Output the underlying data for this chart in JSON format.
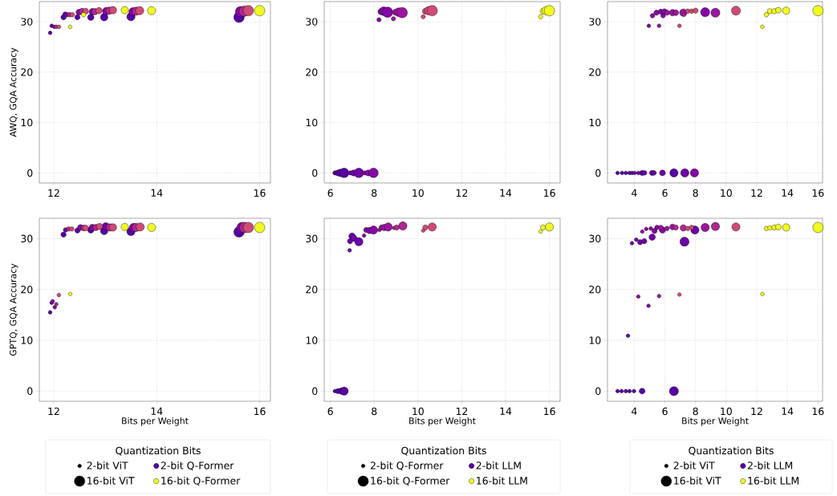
{
  "chart_data": [
    {
      "type": "bubble",
      "ylabel": "AWQ, GQA Accuracy",
      "xlim": [
        11.72,
        16.21
      ],
      "ylim": [
        -2,
        34
      ],
      "xticks": [
        12,
        14,
        16
      ],
      "yticks": [
        0,
        10,
        20,
        30
      ],
      "grid": true,
      "series": [
        {
          "color": "#5602a3",
          "x": [
            11.93,
            12.19,
            12.46,
            12.72,
            12.98,
            13.5,
            15.6
          ],
          "values": [
            27.8,
            30.9,
            30.9,
            30.9,
            30.9,
            31.0,
            30.9
          ],
          "sizes": [
            0.125,
            0.25,
            0.25,
            0.38,
            0.5,
            0.62,
            1
          ]
        },
        {
          "color": "#6e01a8",
          "x": [
            11.96,
            12.22
          ],
          "values": [
            29.2,
            31.5
          ],
          "sizes": [
            0.125,
            0.19
          ]
        },
        {
          "color": "#8409a5",
          "x": [
            12.01,
            12.26,
            12.49,
            12.75,
            13.02,
            13.54,
            15.63
          ],
          "values": [
            29.0,
            31.4,
            31.9,
            32.0,
            32.1,
            32.0,
            32.0
          ],
          "sizes": [
            0.125,
            0.19,
            0.31,
            0.38,
            0.5,
            0.62,
            1
          ]
        },
        {
          "color": "#af2891",
          "x": [
            12.05,
            12.31,
            12.55,
            12.8,
            13.08,
            13.6,
            15.7
          ],
          "values": [
            29.0,
            31.4,
            32.1,
            32.0,
            32.2,
            32.1,
            32.1
          ],
          "sizes": [
            0.125,
            0.19,
            0.31,
            0.38,
            0.5,
            0.62,
            1
          ]
        },
        {
          "color": "#cf4b75",
          "x": [
            12.1,
            12.36,
            12.62,
            12.88,
            13.15,
            13.67,
            15.78
          ],
          "values": [
            29.0,
            31.4,
            32.1,
            32.2,
            32.3,
            32.2,
            32.2
          ],
          "sizes": [
            0.125,
            0.19,
            0.31,
            0.38,
            0.5,
            0.62,
            1
          ]
        },
        {
          "color": "#f0f921",
          "x": [
            12.32,
            12.58,
            13.38,
            13.9,
            16.0
          ],
          "values": [
            29.0,
            31.4,
            32.3,
            32.2,
            32.2
          ],
          "sizes": [
            0.125,
            0.19,
            0.5,
            0.62,
            1
          ]
        }
      ]
    },
    {
      "type": "bubble",
      "xlim": [
        5.72,
        16.49
      ],
      "ylim": [
        -2,
        34
      ],
      "xticks": [
        6,
        8,
        10,
        12,
        14,
        16
      ],
      "yticks": [
        0,
        10,
        20,
        30
      ],
      "grid": true,
      "series": [
        {
          "color": "#5602a3",
          "x": [
            6.21,
            6.35,
            6.47,
            6.63
          ],
          "values": [
            0,
            0,
            0,
            0
          ],
          "sizes": [
            0.17,
            0.33,
            0.5,
            0.83
          ]
        },
        {
          "color": "#6e01a8",
          "x": [
            6.91,
            7.06,
            7.3
          ],
          "values": [
            0,
            0,
            0
          ],
          "sizes": [
            0.17,
            0.33,
            0.83
          ]
        },
        {
          "color": "#8409a5",
          "x": [
            7.57,
            7.73,
            7.97,
            8.22,
            8.31,
            8.43,
            8.61
          ],
          "values": [
            0,
            0,
            0,
            30.4,
            32.0,
            32.1,
            31.9
          ],
          "sizes": [
            0.17,
            0.33,
            0.83,
            0.17,
            0.33,
            0.67,
            1
          ]
        },
        {
          "color": "#9a169e",
          "x": [
            8.88,
            8.97,
            9.12,
            9.28
          ],
          "values": [
            30.6,
            31.9,
            31.9,
            31.8
          ],
          "sizes": [
            0.17,
            0.33,
            0.67,
            1
          ]
        },
        {
          "color": "#cf4b75",
          "x": [
            10.24,
            10.34,
            10.49,
            10.65
          ],
          "values": [
            31.0,
            32.1,
            32.2,
            32.2
          ],
          "sizes": [
            0.17,
            0.33,
            0.67,
            1
          ]
        },
        {
          "color": "#f0f921",
          "x": [
            15.6,
            15.71,
            15.85,
            16.0
          ],
          "values": [
            31.0,
            32.1,
            32.2,
            32.2
          ],
          "sizes": [
            0.17,
            0.33,
            0.67,
            1
          ]
        }
      ]
    },
    {
      "type": "bubble",
      "xlim": [
        2.25,
        16.3
      ],
      "ylim": [
        -2,
        34
      ],
      "xticks": [
        4,
        6,
        8,
        10,
        12,
        14,
        16
      ],
      "yticks": [
        0,
        10,
        20,
        30
      ],
      "grid": true,
      "series": [
        {
          "color": "#5602a3",
          "x": [
            2.91,
            3.2,
            3.45,
            3.69,
            3.85,
            4.51,
            6.59
          ],
          "values": [
            0,
            0,
            0,
            0,
            0,
            0,
            0
          ],
          "sizes": [
            0.125,
            0.125,
            0.125,
            0.125,
            0.125,
            0.25,
            0.62
          ]
        },
        {
          "color": "#6e01a8",
          "x": [
            4.02,
            4.26,
            4.67,
            5.16,
            5.29,
            5.84,
            7.3
          ],
          "values": [
            0,
            0,
            0,
            0,
            0,
            0,
            0
          ],
          "sizes": [
            0.125,
            0.125,
            0.19,
            0.25,
            0.19,
            0.31,
            0.62
          ]
        },
        {
          "color": "#8409a5",
          "x": [
            7.93,
            4.95,
            5.19,
            5.45,
            5.73,
            5.88,
            5.97,
            8.63
          ],
          "values": [
            0,
            29.2,
            31.2,
            31.8,
            32.0,
            31.2,
            32.0,
            31.9
          ],
          "sizes": [
            0.62,
            0.125,
            0.19,
            0.25,
            0.25,
            0.19,
            0.31,
            0.75
          ]
        },
        {
          "color": "#9a169e",
          "x": [
            5.62,
            6.14,
            6.5,
            6.71,
            7.2,
            9.3
          ],
          "values": [
            29.2,
            31.8,
            31.8,
            31.8,
            31.8,
            31.8
          ],
          "sizes": [
            0.125,
            0.25,
            0.38,
            0.31,
            0.5,
            0.75
          ]
        },
        {
          "color": "#af2891",
          "x": [
            7.25
          ],
          "values": [
            31.4
          ],
          "sizes": [
            0.125
          ]
        },
        {
          "color": "#cf4b75",
          "x": [
            6.95,
            7.49,
            7.74,
            8.0,
            10.64
          ],
          "values": [
            29.2,
            32.1,
            32.1,
            32.2,
            32.2
          ],
          "sizes": [
            0.125,
            0.19,
            0.19,
            0.25,
            0.75
          ]
        },
        {
          "color": "#f0f921",
          "x": [
            12.37,
            12.63,
            12.86,
            13.15,
            13.41,
            13.92,
            16.0
          ],
          "values": [
            29.0,
            31.4,
            32.1,
            32.1,
            32.3,
            32.2,
            32.2
          ],
          "sizes": [
            0.125,
            0.19,
            0.25,
            0.25,
            0.31,
            0.5,
            1
          ]
        }
      ]
    },
    {
      "type": "bubble",
      "xlabel": "Bits per Weight",
      "ylabel": "GPTQ, GQA Accuracy",
      "xlim": [
        11.72,
        16.21
      ],
      "ylim": [
        -2,
        34
      ],
      "xticks": [
        12,
        14,
        16
      ],
      "yticks": [
        0,
        10,
        20,
        30
      ],
      "grid": true,
      "legend": "bottom",
      "legend_title": "Quantization Bits",
      "size_legend": [
        {
          "value": 2,
          "label": "2-bit ViT"
        },
        {
          "value": 16,
          "label": "16-bit ViT"
        }
      ],
      "series": [
        {
          "name": "2-bit Q-Former",
          "color": "#5602a3",
          "x": [
            11.93,
            12.19,
            12.46,
            12.72,
            12.98,
            13.5,
            15.6
          ],
          "values": [
            15.5,
            30.8,
            31.6,
            31.7,
            31.5,
            31.4,
            31.3
          ],
          "sizes": [
            2,
            4,
            4,
            6,
            8,
            10,
            16
          ]
        },
        {
          "color": "#6e01a8",
          "x": [
            11.96,
            12.23,
            13.01
          ],
          "values": [
            17.4,
            31.7,
            32.4
          ],
          "sizes": [
            2,
            3,
            8
          ]
        },
        {
          "color": "#8409a5",
          "x": [
            11.98,
            12.02,
            12.52,
            12.75,
            13.55,
            15.66
          ],
          "values": [
            17.7,
            16.5,
            32.2,
            32.2,
            32.2,
            32.2
          ],
          "sizes": [
            2,
            2,
            5,
            6,
            10,
            16
          ]
        },
        {
          "color": "#af2891",
          "x": [
            12.05,
            12.29,
            12.58,
            12.82,
            13.09,
            13.6,
            15.71
          ],
          "values": [
            17.1,
            31.9,
            32.1,
            32.2,
            32.2,
            32.2,
            32.2
          ],
          "sizes": [
            2,
            3,
            5,
            6,
            8,
            10,
            16
          ]
        },
        {
          "color": "#cf4b75",
          "x": [
            12.1,
            12.35,
            12.62,
            12.89,
            13.15,
            13.68,
            15.78
          ],
          "values": [
            18.9,
            31.9,
            32.1,
            32.4,
            32.2,
            32.3,
            32.2
          ],
          "sizes": [
            2,
            3,
            5,
            6,
            8,
            10,
            16
          ]
        },
        {
          "name": "16-bit Q-Former",
          "color": "#f0f921",
          "x": [
            12.32,
            13.38,
            13.9,
            16.0
          ],
          "values": [
            19.1,
            32.3,
            32.2,
            32.2
          ],
          "sizes": [
            2,
            8,
            10,
            16
          ]
        }
      ]
    },
    {
      "type": "bubble",
      "xlabel": "Bits per Weight",
      "xlim": [
        5.72,
        16.49
      ],
      "ylim": [
        -2,
        34
      ],
      "xticks": [
        6,
        8,
        10,
        12,
        14,
        16
      ],
      "yticks": [
        0,
        10,
        20,
        30
      ],
      "grid": true,
      "legend": "bottom",
      "legend_title": "Quantization Bits",
      "size_legend": [
        {
          "value": 2,
          "label": "2-bit Q-Former"
        },
        {
          "value": 16,
          "label": "16-bit Q-Former"
        }
      ],
      "series": [
        {
          "name": "2-bit LLM",
          "color": "#5602a3",
          "x": [
            6.21,
            6.35,
            6.51,
            6.63
          ],
          "values": [
            0,
            0,
            0,
            0
          ],
          "sizes": [
            2,
            4,
            6,
            10
          ]
        },
        {
          "color": "#6e01a8",
          "x": [
            6.88,
            6.9,
            6.99,
            7.07,
            7.3
          ],
          "values": [
            27.7,
            29.5,
            30.5,
            30.1,
            29.4
          ],
          "sizes": [
            2,
            4,
            6,
            6,
            10
          ]
        },
        {
          "color": "#8409a5",
          "x": [
            7.54,
            7.64,
            7.79,
            7.97
          ],
          "values": [
            30.6,
            31.7,
            31.6,
            31.7
          ],
          "sizes": [
            2,
            4,
            6,
            10
          ]
        },
        {
          "color": "#9a169e",
          "x": [
            8.24,
            8.34,
            8.46,
            8.64
          ],
          "values": [
            31.7,
            32.2,
            32.2,
            32.3
          ],
          "sizes": [
            2,
            4,
            6,
            10
          ]
        },
        {
          "color": "#af2891",
          "x": [
            8.91,
            9.03,
            9.31
          ],
          "values": [
            32.1,
            32.2,
            32.5
          ],
          "sizes": [
            2,
            4,
            10
          ]
        },
        {
          "color": "#cf4b75",
          "x": [
            10.24,
            10.34,
            10.65
          ],
          "values": [
            31.6,
            32.2,
            32.3
          ],
          "sizes": [
            2,
            4,
            10
          ]
        },
        {
          "name": "16-bit LLM",
          "color": "#f0f921",
          "x": [
            15.6,
            15.71,
            16.0
          ],
          "values": [
            31.4,
            32.2,
            32.3
          ],
          "sizes": [
            2,
            4,
            10
          ]
        }
      ]
    },
    {
      "type": "bubble",
      "xlabel": "Bits per Weight",
      "xlim": [
        2.25,
        16.3
      ],
      "ylim": [
        -2,
        34
      ],
      "xticks": [
        4,
        6,
        8,
        10,
        12,
        14,
        16
      ],
      "yticks": [
        0,
        10,
        20,
        30
      ],
      "grid": true,
      "legend": "bottom",
      "legend_title": "Quantization Bits",
      "size_legend": [
        {
          "value": 2,
          "label": "2-bit ViT"
        },
        {
          "value": 16,
          "label": "16-bit ViT"
        }
      ],
      "series": [
        {
          "name": "2-bit LLM",
          "color": "#5602a3",
          "x": [
            2.91,
            3.17,
            3.45,
            3.69,
            3.98,
            4.51,
            6.59
          ],
          "values": [
            0,
            0,
            0,
            0,
            0,
            0,
            0
          ],
          "sizes": [
            2,
            2,
            2,
            2,
            2,
            5,
            12
          ]
        },
        {
          "color": "#6e01a8",
          "x": [
            3.59,
            3.85,
            4.13,
            4.38,
            4.65,
            5.17,
            7.28,
            7.96
          ],
          "values": [
            10.9,
            29.1,
            29.8,
            29.3,
            29.5,
            30.3,
            29.4,
            31.7
          ],
          "sizes": [
            2,
            2,
            2,
            4,
            4,
            6,
            12,
            10
          ]
        },
        {
          "color": "#8409a5",
          "x": [
            4.26,
            4.93,
            4.52,
            4.78,
            5.08,
            5.32,
            5.48,
            5.84
          ],
          "values": [
            18.6,
            16.8,
            31.4,
            31.9,
            32.0,
            31.5,
            32.2,
            31.7
          ],
          "sizes": [
            2,
            2,
            2,
            2,
            2,
            4,
            3,
            6
          ]
        },
        {
          "color": "#9a169e",
          "x": [
            5.62,
            5.73,
            6.14,
            6.5,
            8.63
          ],
          "values": [
            18.7,
            32.2,
            32.0,
            32.3,
            32.2
          ],
          "sizes": [
            2,
            3,
            3,
            5,
            10
          ]
        },
        {
          "color": "#af2891",
          "x": [
            6.71,
            7.2,
            9.3
          ],
          "values": [
            32.2,
            32.1,
            32.4
          ],
          "sizes": [
            4,
            6,
            10
          ]
        },
        {
          "color": "#cf4b75",
          "x": [
            6.95,
            7.49,
            7.74,
            10.64
          ],
          "values": [
            19.0,
            32.0,
            32.2,
            32.3
          ],
          "sizes": [
            2,
            3,
            3,
            10
          ]
        },
        {
          "name": "16-bit LLM",
          "color": "#f0f921",
          "x": [
            12.37,
            12.63,
            12.86,
            13.15,
            13.41,
            13.92,
            16.0
          ],
          "values": [
            19.1,
            32.0,
            32.1,
            32.2,
            32.3,
            32.2,
            32.2
          ],
          "sizes": [
            2,
            3,
            3,
            4,
            5,
            8,
            16
          ]
        }
      ]
    }
  ]
}
